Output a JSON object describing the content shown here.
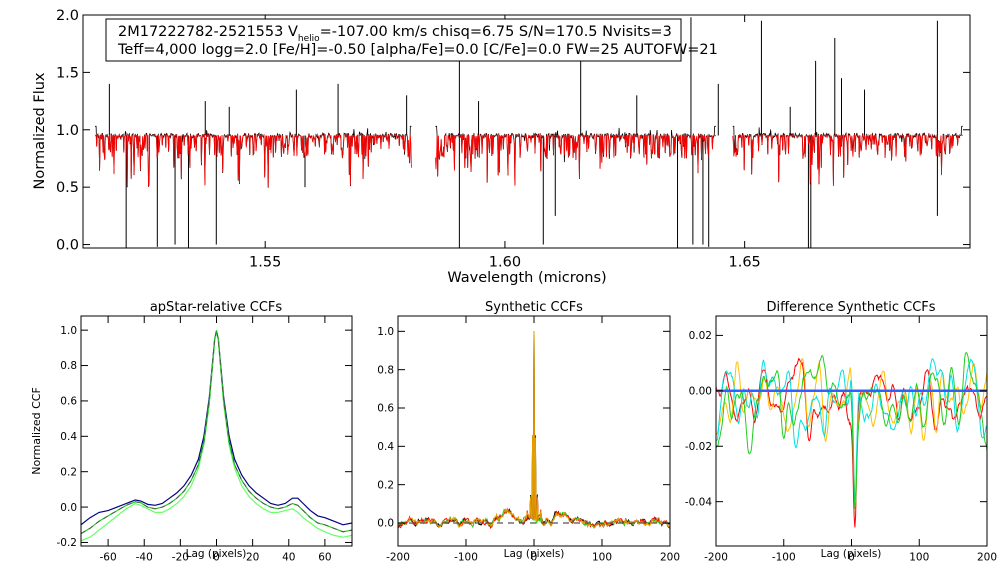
{
  "figure": {
    "info_line1_a": "2M17222782-2521553  V",
    "info_line1_sub": "helio",
    "info_line1_b": "=-107.00 km/s  chisq=6.75  S/N=170.5  Nvisits=3",
    "info_line2": "Teff=4,000 logg=2.0 [Fe/H]=-0.50 [alpha/Fe]=0.0 [C/Fe]=0.0 FW=25 AUTOFW=21"
  },
  "colors": {
    "observed": "#000000",
    "model": "#ff0000",
    "navy": "#000080",
    "cyan": "#00e0e0",
    "green": "#22cc22",
    "lightgreen": "#66ff66",
    "orange": "#e0a000",
    "gold": "#ffc000",
    "blue": "#3060ff",
    "dashed": "#555555"
  },
  "chart_data": [
    {
      "id": "spectrum",
      "type": "line",
      "title": "",
      "xlabel": "Wavelength (microns)",
      "ylabel": "Normalized Flux",
      "xlim": [
        1.512,
        1.697
      ],
      "ylim": [
        -0.03,
        2.0
      ],
      "xticks": [
        1.55,
        1.6,
        1.65
      ],
      "xtick_labels": [
        "1.55",
        "1.60",
        "1.65"
      ],
      "yticks": [
        0.0,
        0.5,
        1.0,
        1.5,
        2.0
      ],
      "ytick_labels": [
        "0.0",
        "0.5",
        "1.0",
        "1.5",
        "2.0"
      ],
      "chips": [
        [
          1.5145,
          1.5805
        ],
        [
          1.5855,
          1.644
        ],
        [
          1.6475,
          1.6955
        ]
      ],
      "continuum": 0.95,
      "series": [
        {
          "name": "observed",
          "color": "#000000"
        },
        {
          "name": "model",
          "color": "#ff0000"
        }
      ],
      "spikes_up": [
        [
          1.5175,
          1.4
        ],
        [
          1.5375,
          1.25
        ],
        [
          1.5425,
          1.2
        ],
        [
          1.5565,
          1.35
        ],
        [
          1.5652,
          1.4
        ],
        [
          1.5795,
          1.3
        ],
        [
          1.5905,
          1.6
        ],
        [
          1.5945,
          1.25
        ],
        [
          1.6158,
          1.65
        ],
        [
          1.6275,
          1.3
        ],
        [
          1.6388,
          1.98
        ],
        [
          1.6445,
          1.4
        ],
        [
          1.6535,
          1.95
        ],
        [
          1.6595,
          1.2
        ],
        [
          1.6648,
          1.6
        ],
        [
          1.6688,
          1.8
        ],
        [
          1.6702,
          1.45
        ],
        [
          1.675,
          1.35
        ],
        [
          1.6902,
          1.95
        ]
      ],
      "spikes_down": [
        [
          1.521,
          -0.03
        ],
        [
          1.5275,
          -0.02
        ],
        [
          1.5312,
          0.0
        ],
        [
          1.534,
          -0.03
        ],
        [
          1.5398,
          0.0
        ],
        [
          1.5583,
          0.5
        ],
        [
          1.5905,
          -0.03
        ],
        [
          1.608,
          0.0
        ],
        [
          1.6105,
          0.25
        ],
        [
          1.636,
          -0.03
        ],
        [
          1.6392,
          0.0
        ],
        [
          1.6413,
          0.0
        ],
        [
          1.6425,
          -0.02
        ],
        [
          1.6633,
          -0.03
        ],
        [
          1.6638,
          -0.03
        ],
        [
          1.6902,
          0.25
        ]
      ]
    },
    {
      "id": "apstar-ccf",
      "type": "line",
      "title": "apStar-relative CCFs",
      "xlabel": "Lag (pixels)",
      "ylabel": "Normalized CCF",
      "xlim": [
        -75,
        75
      ],
      "ylim": [
        -0.22,
        1.08
      ],
      "xticks": [
        -60,
        -40,
        -20,
        0,
        20,
        40,
        60
      ],
      "xtick_labels": [
        "-60",
        "-40",
        "-20",
        "0",
        "20",
        "40",
        "60"
      ],
      "yticks": [
        -0.2,
        0.0,
        0.2,
        0.4,
        0.6,
        0.8,
        1.0
      ],
      "ytick_labels": [
        "-0.2",
        "0.0",
        "0.2",
        "0.4",
        "0.6",
        "0.8",
        "1.0"
      ],
      "series": [
        {
          "name": "ccf-navy",
          "color": "#000080",
          "dash": false,
          "x": [
            -75,
            -70,
            -65,
            -60,
            -55,
            -50,
            -45,
            -42,
            -38,
            -34,
            -30,
            -26,
            -22,
            -18,
            -14,
            -10,
            -7,
            -4,
            -2,
            -1,
            0,
            1,
            2,
            4,
            7,
            10,
            14,
            18,
            22,
            26,
            30,
            34,
            38,
            42,
            45,
            48,
            52,
            56,
            60,
            65,
            70,
            75
          ],
          "y": [
            -0.1,
            -0.06,
            -0.03,
            -0.02,
            0.0,
            0.02,
            0.04,
            0.035,
            0.015,
            0.01,
            0.02,
            0.05,
            0.08,
            0.12,
            0.18,
            0.27,
            0.4,
            0.62,
            0.84,
            0.95,
            0.99,
            0.95,
            0.84,
            0.62,
            0.4,
            0.27,
            0.18,
            0.12,
            0.08,
            0.05,
            0.02,
            0.01,
            0.02,
            0.05,
            0.05,
            0.02,
            -0.02,
            -0.05,
            -0.06,
            -0.08,
            -0.1,
            -0.09
          ]
        },
        {
          "name": "ccf-lightgreen",
          "color": "#66ff66",
          "dash": false,
          "x": [
            -75,
            -70,
            -65,
            -60,
            -55,
            -50,
            -45,
            -42,
            -38,
            -34,
            -30,
            -26,
            -22,
            -18,
            -14,
            -10,
            -7,
            -4,
            -2,
            -1,
            0,
            1,
            2,
            4,
            7,
            10,
            14,
            18,
            22,
            26,
            30,
            34,
            38,
            42,
            45,
            48,
            52,
            56,
            60,
            65,
            70,
            75
          ],
          "y": [
            -0.19,
            -0.17,
            -0.13,
            -0.09,
            -0.05,
            -0.01,
            0.02,
            0.01,
            -0.01,
            -0.03,
            -0.03,
            -0.01,
            0.02,
            0.06,
            0.12,
            0.22,
            0.35,
            0.58,
            0.82,
            0.94,
            0.99,
            0.94,
            0.82,
            0.58,
            0.35,
            0.22,
            0.12,
            0.06,
            0.02,
            -0.01,
            -0.03,
            -0.03,
            -0.02,
            -0.01,
            -0.03,
            -0.06,
            -0.09,
            -0.12,
            -0.14,
            -0.16,
            -0.17,
            -0.16
          ]
        },
        {
          "name": "ccf-green",
          "color": "#22cc22",
          "dash": false,
          "x": [
            -75,
            -70,
            -65,
            -60,
            -55,
            -50,
            -45,
            -42,
            -38,
            -34,
            -30,
            -26,
            -22,
            -18,
            -14,
            -10,
            -7,
            -4,
            -2,
            -1,
            0,
            1,
            2,
            4,
            7,
            10,
            14,
            18,
            22,
            26,
            30,
            34,
            38,
            42,
            45,
            48,
            52,
            56,
            60,
            65,
            70,
            75
          ],
          "y": [
            -0.15,
            -0.12,
            -0.08,
            -0.05,
            -0.02,
            0.01,
            0.03,
            0.025,
            0.0,
            -0.01,
            0.0,
            0.02,
            0.05,
            0.09,
            0.15,
            0.24,
            0.37,
            0.6,
            0.83,
            0.95,
            1.0,
            0.95,
            0.83,
            0.6,
            0.37,
            0.24,
            0.15,
            0.09,
            0.05,
            0.02,
            0.0,
            -0.01,
            0.0,
            0.02,
            0.01,
            -0.02,
            -0.06,
            -0.09,
            -0.1,
            -0.12,
            -0.14,
            -0.13
          ]
        },
        {
          "name": "ccf-dashed",
          "color": "#555555",
          "dash": true,
          "x": [
            -75,
            -70,
            -65,
            -60,
            -55,
            -50,
            -45,
            -42,
            -38,
            -34,
            -30,
            -26,
            -22,
            -18,
            -14,
            -10,
            -7,
            -4,
            -2,
            -1,
            0,
            1,
            2,
            4,
            7,
            10,
            14,
            18,
            22,
            26,
            30,
            34,
            38,
            42,
            45,
            48,
            52,
            56,
            60,
            65,
            70,
            75
          ],
          "y": [
            -0.15,
            -0.12,
            -0.08,
            -0.05,
            -0.02,
            0.01,
            0.03,
            0.025,
            0.0,
            -0.01,
            0.0,
            0.02,
            0.05,
            0.09,
            0.15,
            0.24,
            0.37,
            0.6,
            0.83,
            0.95,
            1.0,
            0.95,
            0.83,
            0.6,
            0.37,
            0.24,
            0.15,
            0.09,
            0.05,
            0.02,
            0.0,
            -0.01,
            0.0,
            0.02,
            0.01,
            -0.02,
            -0.06,
            -0.09,
            -0.1,
            -0.12,
            -0.14,
            -0.13
          ]
        }
      ]
    },
    {
      "id": "synthetic-ccf",
      "type": "line",
      "title": "Synthetic CCFs",
      "xlabel": "Lag (pixels)",
      "ylabel": "",
      "xlim": [
        -200,
        200
      ],
      "ylim": [
        -0.12,
        1.08
      ],
      "xticks": [
        -200,
        -100,
        0,
        100,
        200
      ],
      "xtick_labels": [
        "-200",
        "-100",
        "0",
        "100",
        "200"
      ],
      "yticks": [
        0.0,
        0.2,
        0.4,
        0.6,
        0.8,
        1.0
      ],
      "ytick_labels": [
        "0.0",
        "0.2",
        "0.4",
        "0.6",
        "0.8",
        "1.0"
      ],
      "dashed_zero": true,
      "peak": [
        [
          -10,
          0.06
        ],
        [
          -5,
          0.14
        ],
        [
          -2,
          0.45
        ],
        [
          0,
          1.0
        ],
        [
          2,
          0.45
        ],
        [
          5,
          0.14
        ],
        [
          10,
          0.06
        ]
      ],
      "series": [
        {
          "name": "syn-black",
          "color": "#000000",
          "seed": 11
        },
        {
          "name": "syn-green",
          "color": "#22cc22",
          "seed": 23
        },
        {
          "name": "syn-red",
          "color": "#ff0000",
          "seed": 37
        },
        {
          "name": "syn-orange",
          "color": "#e0a000",
          "seed": 51
        }
      ]
    },
    {
      "id": "difference-ccf",
      "type": "line",
      "title": "Difference Synthetic CCFs",
      "xlabel": "Lag (pixels)",
      "ylabel": "",
      "xlim": [
        -200,
        200
      ],
      "ylim": [
        -0.056,
        0.027
      ],
      "xticks": [
        -200,
        -100,
        0,
        100,
        200
      ],
      "xtick_labels": [
        "-200",
        "-100",
        "0",
        "100",
        "200"
      ],
      "yticks": [
        -0.04,
        -0.02,
        0.0,
        0.02
      ],
      "ytick_labels": [
        "-0.04",
        "-0.02",
        "0.00",
        "0.02"
      ],
      "series": [
        {
          "name": "diff-red",
          "color": "#ff0000",
          "seed": 7,
          "dip": -0.043
        },
        {
          "name": "diff-gold",
          "color": "#ffc000",
          "seed": 19,
          "dip": -0.035
        },
        {
          "name": "diff-cyan",
          "color": "#00e0e0",
          "seed": 31,
          "dip": -0.05
        },
        {
          "name": "diff-green",
          "color": "#22cc22",
          "seed": 43,
          "dip": -0.04
        },
        {
          "name": "diff-zero",
          "color": "#3060ff",
          "flat": 0.0
        }
      ]
    }
  ]
}
